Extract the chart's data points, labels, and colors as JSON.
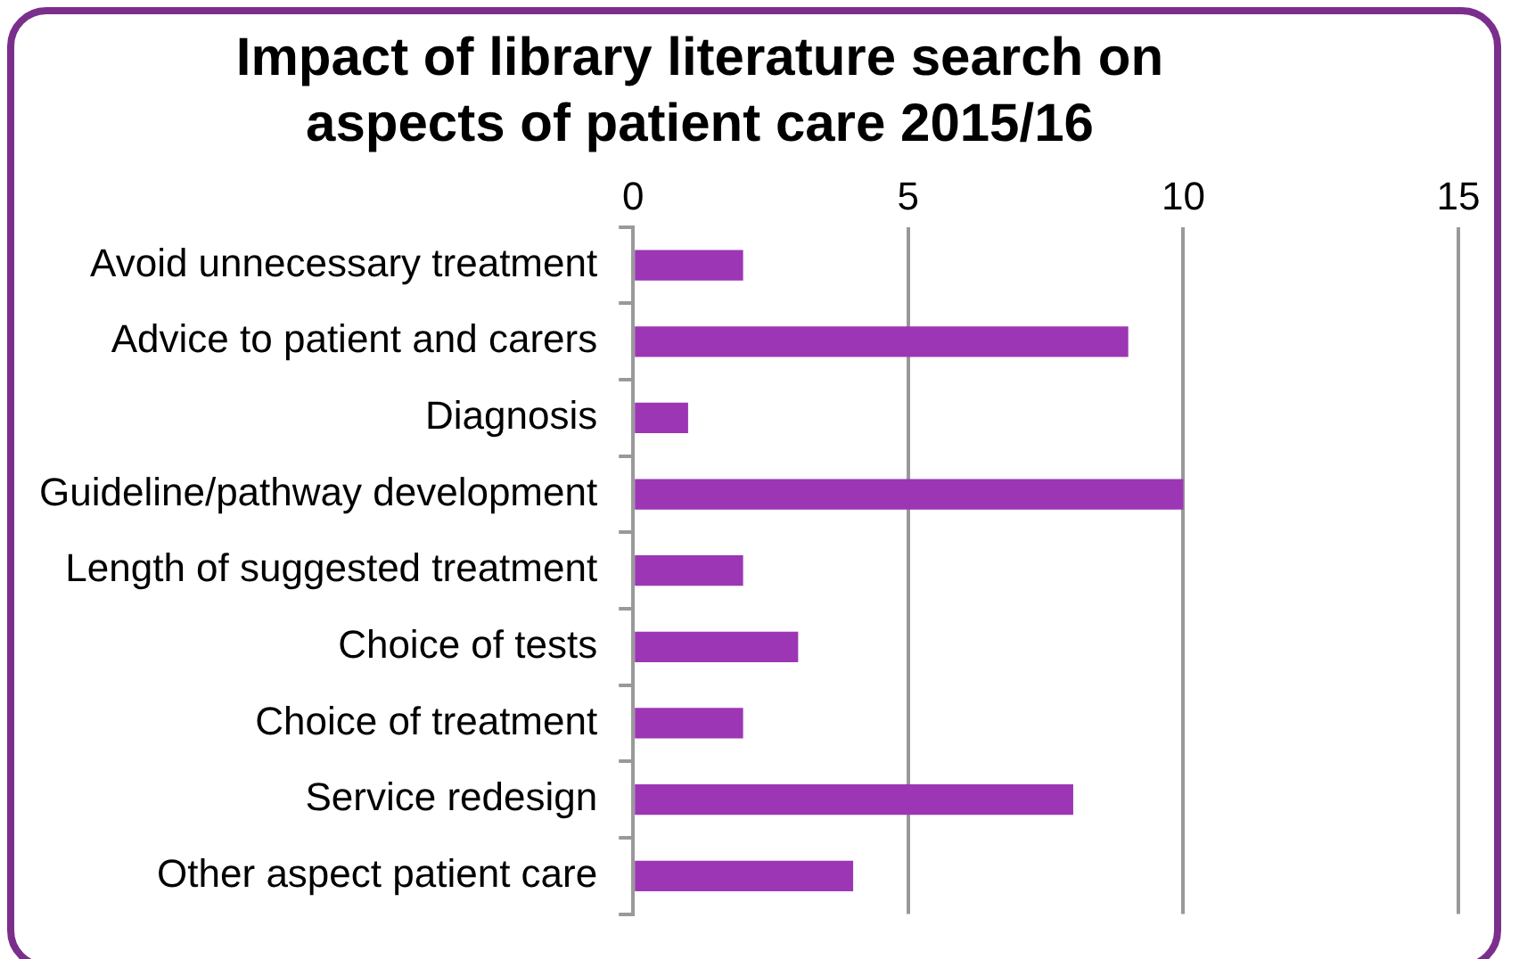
{
  "chart_data": {
    "type": "bar",
    "orientation": "horizontal",
    "title": "Impact of library literature search on aspects of patient care 2015/16",
    "categories": [
      "Avoid unnecessary treatment",
      "Advice to patient and carers",
      "Diagnosis",
      "Guideline/pathway development",
      "Length of suggested treatment",
      "Choice of tests",
      "Choice of treatment",
      "Service redesign",
      "Other aspect patient care"
    ],
    "values": [
      2,
      9,
      1,
      10,
      2,
      3,
      2,
      8,
      4
    ],
    "color": "#9c36b5",
    "xlim": [
      0,
      15
    ],
    "xticks": [
      0,
      5,
      10,
      15
    ],
    "grid": "x",
    "legend": false
  }
}
